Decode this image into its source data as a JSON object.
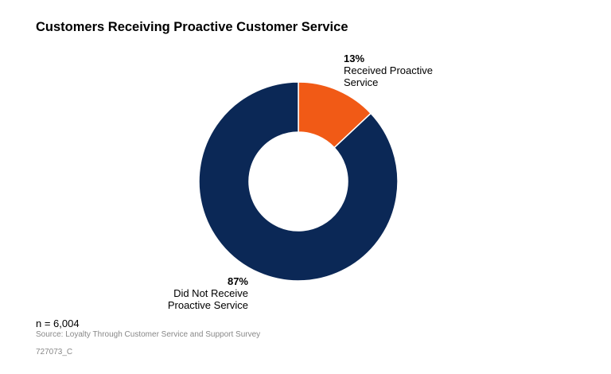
{
  "chart_data": {
    "type": "pie",
    "variant": "donut",
    "title": "Customers Receiving Proactive Customer Service",
    "slices": [
      {
        "label": "Received Proactive Service",
        "value": 13,
        "display": "13%",
        "color": "#f15a16"
      },
      {
        "label": "Did Not Receive Proactive Service",
        "value": 87,
        "display": "87%",
        "color": "#0b2856"
      }
    ]
  },
  "footer": {
    "n": "n = 6,004",
    "source": "Source: Loyalty Through Customer Service and Support Survey",
    "code": "727073_C"
  }
}
